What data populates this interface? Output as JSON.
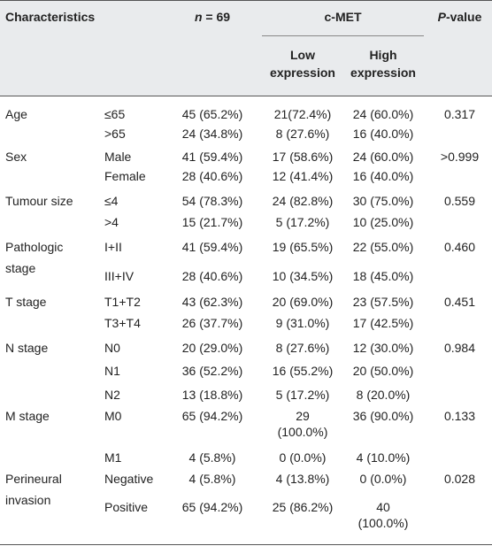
{
  "header": {
    "characteristics": "Characteristics",
    "n_prefix": "n",
    "n_suffix": " = 69",
    "cmet": "c-MET",
    "low": [
      "Low",
      "expression"
    ],
    "high": [
      "High",
      "expression"
    ],
    "p_prefix": "P",
    "p_suffix": "-value"
  },
  "groups": [
    {
      "name": [
        "Age"
      ],
      "p": "0.317",
      "rows": [
        {
          "sub": "≤65",
          "n": "45 (65.2%)",
          "low": [
            "21(72.4%)"
          ],
          "high": [
            "24 (60.0%)"
          ]
        },
        {
          "sub": ">65",
          "n": "24 (34.8%)",
          "low": [
            "8 (27.6%)"
          ],
          "high": [
            "16 (40.0%)"
          ]
        }
      ]
    },
    {
      "name": [
        "Sex"
      ],
      "p": ">0.999",
      "rows": [
        {
          "sub": "Male",
          "n": "41 (59.4%)",
          "low": [
            "17 (58.6%)"
          ],
          "high": [
            "24 (60.0%)"
          ]
        },
        {
          "sub": "Female",
          "n": "28 (40.6%)",
          "low": [
            "12 (41.4%)"
          ],
          "high": [
            "16 (40.0%)"
          ]
        }
      ]
    },
    {
      "name": [
        "Tumour size"
      ],
      "p": "0.559",
      "rows": [
        {
          "sub": "≤4",
          "n": "54 (78.3%)",
          "low": [
            "24 (82.8%)"
          ],
          "high": [
            "30 (75.0%)"
          ]
        },
        {
          "sub": ">4",
          "n": "15 (21.7%)",
          "low": [
            "5 (17.2%)"
          ],
          "high": [
            "10 (25.0%)"
          ]
        }
      ]
    },
    {
      "name": [
        "Pathologic",
        "stage"
      ],
      "p": "0.460",
      "rows": [
        {
          "sub": "I+II",
          "n": "41 (59.4%)",
          "low": [
            "19 (65.5%)"
          ],
          "high": [
            "22 (55.0%)"
          ]
        },
        {
          "sub": "III+IV",
          "n": "28 (40.6%)",
          "low": [
            "10 (34.5%)"
          ],
          "high": [
            "18 (45.0%)"
          ]
        }
      ]
    },
    {
      "name": [
        "T stage"
      ],
      "p": "0.451",
      "rows": [
        {
          "sub": "T1+T2",
          "n": "43 (62.3%)",
          "low": [
            "20 (69.0%)"
          ],
          "high": [
            "23 (57.5%)"
          ]
        },
        {
          "sub": "T3+T4",
          "n": "26 (37.7%)",
          "low": [
            "9 (31.0%)"
          ],
          "high": [
            "17 (42.5%)"
          ]
        }
      ]
    },
    {
      "name": [
        "N stage"
      ],
      "p": "0.984",
      "rows": [
        {
          "sub": "N0",
          "n": "20 (29.0%)",
          "low": [
            "8 (27.6%)"
          ],
          "high": [
            "12 (30.0%)"
          ]
        },
        {
          "sub": "N1",
          "n": "36 (52.2%)",
          "low": [
            "16 (55.2%)"
          ],
          "high": [
            "20 (50.0%)"
          ]
        },
        {
          "sub": "N2",
          "n": "13 (18.8%)",
          "low": [
            "5 (17.2%)"
          ],
          "high": [
            "8 (20.0%)"
          ]
        }
      ]
    },
    {
      "name": [
        "M stage"
      ],
      "p": "0.133",
      "rows": [
        {
          "sub": "M0",
          "n": "65 (94.2%)",
          "low": [
            "29",
            "(100.0%)"
          ],
          "high": [
            "36 (90.0%)"
          ]
        },
        {
          "sub": "M1",
          "n": "4 (5.8%)",
          "low": [
            "0 (0.0%)"
          ],
          "high": [
            "4 (10.0%)"
          ]
        }
      ]
    },
    {
      "name": [
        "Perineural",
        "invasion"
      ],
      "p": "0.028",
      "rows": [
        {
          "sub": "Negative",
          "n": "4 (5.8%)",
          "low": [
            "4 (13.8%)"
          ],
          "high": [
            "0 (0.0%)"
          ]
        },
        {
          "sub": "Positive",
          "n": "65 (94.2%)",
          "low": [
            "25 (86.2%)"
          ],
          "high": [
            "40",
            "(100.0%)"
          ]
        }
      ]
    }
  ]
}
